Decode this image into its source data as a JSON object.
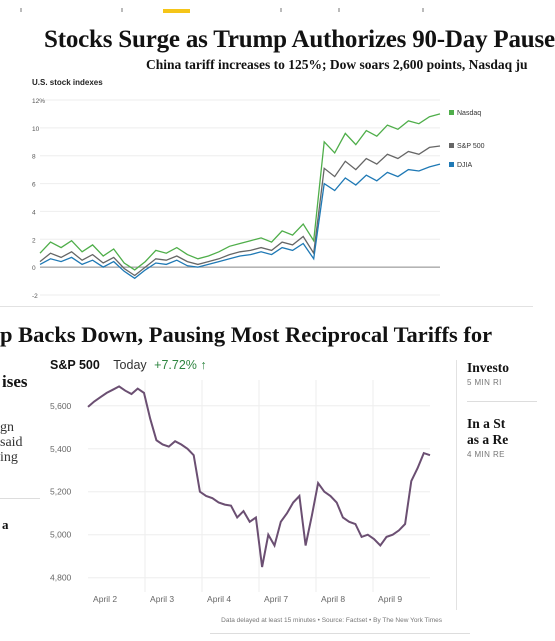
{
  "headline": "Stocks Surge as Trump Authorizes 90-Day Pause",
  "deck": "China tariff increases to 125%; Dow soars 2,600 points, Nasdaq ju",
  "headline2": "p Backs Down, Pausing Most Reciprocal Tariffs for",
  "left_column": {
    "heading": "ises",
    "lines": [
      "gn",
      "said",
      "ing"
    ],
    "bottom": "a"
  },
  "right_column": [
    {
      "title": [
        "Investo"
      ],
      "meta": "5 MIN RI"
    },
    {
      "title": [
        "In a St",
        "as a Re"
      ],
      "meta": "4 MIN RE"
    }
  ],
  "chart_data": [
    {
      "type": "line",
      "title": "U.S. stock indexes",
      "y_ticks": [
        "12%",
        "10",
        "8",
        "6",
        "4",
        "2",
        "0",
        "-2"
      ],
      "ylim": [
        -2,
        12
      ],
      "grid": true,
      "legend": "right",
      "series": [
        {
          "name": "Nasdaq",
          "color": "#4fae4a",
          "values": [
            1.0,
            1.8,
            1.4,
            1.9,
            1.1,
            1.6,
            0.8,
            1.3,
            0.3,
            -0.2,
            0.4,
            1.2,
            1.0,
            1.4,
            0.9,
            0.6,
            0.8,
            1.1,
            1.5,
            1.7,
            1.9,
            2.1,
            1.8,
            2.6,
            2.3,
            3.1,
            1.9,
            9.0,
            8.2,
            9.6,
            8.8,
            9.8,
            9.4,
            10.2,
            9.9,
            10.5,
            10.3,
            10.8,
            11.0
          ]
        },
        {
          "name": "S&P 500",
          "color": "#666666",
          "values": [
            0.4,
            1.0,
            0.7,
            1.1,
            0.5,
            0.9,
            0.3,
            0.7,
            -0.1,
            -0.6,
            0.0,
            0.6,
            0.5,
            0.8,
            0.4,
            0.2,
            0.4,
            0.6,
            0.9,
            1.1,
            1.2,
            1.4,
            1.2,
            1.8,
            1.6,
            2.2,
            1.0,
            7.1,
            6.5,
            7.6,
            7.0,
            7.8,
            7.4,
            8.1,
            7.8,
            8.3,
            8.1,
            8.6,
            8.7
          ]
        },
        {
          "name": "DJIA",
          "color": "#1f79b5",
          "values": [
            0.2,
            0.6,
            0.4,
            0.7,
            0.2,
            0.5,
            0.0,
            0.4,
            -0.3,
            -0.8,
            -0.2,
            0.3,
            0.2,
            0.5,
            0.1,
            0.0,
            0.2,
            0.4,
            0.6,
            0.8,
            0.9,
            1.1,
            0.9,
            1.4,
            1.2,
            1.7,
            0.6,
            6.0,
            5.5,
            6.4,
            5.9,
            6.6,
            6.2,
            6.8,
            6.5,
            7.0,
            6.9,
            7.2,
            7.4
          ]
        }
      ]
    },
    {
      "type": "line",
      "ticker": "S&P 500",
      "period_label": "Today",
      "change": "+7.72% ↑",
      "y_ticks": [
        "5,600",
        "5,400",
        "5,200",
        "5,000",
        "4,800"
      ],
      "ylim": [
        4780,
        5720
      ],
      "x_ticks": [
        "April 2",
        "April 3",
        "April 4",
        "April 7",
        "April 8",
        "April 9"
      ],
      "source": "Data delayed at least 15 minutes • Source: Factset • By The New York Times",
      "series": [
        {
          "name": "S&P 500",
          "color": "#6b4f72",
          "values": [
            5595,
            5620,
            5640,
            5660,
            5675,
            5690,
            5670,
            5655,
            5680,
            5660,
            5540,
            5440,
            5420,
            5410,
            5435,
            5420,
            5400,
            5370,
            5200,
            5180,
            5170,
            5150,
            5140,
            5135,
            5080,
            5110,
            5060,
            5080,
            4850,
            5000,
            4950,
            5060,
            5100,
            5150,
            5180,
            4950,
            5090,
            5240,
            5200,
            5180,
            5150,
            5080,
            5060,
            5050,
            4990,
            5000,
            4980,
            4950,
            4990,
            5000,
            5020,
            5050,
            5250,
            5310,
            5380,
            5370
          ]
        }
      ]
    }
  ]
}
